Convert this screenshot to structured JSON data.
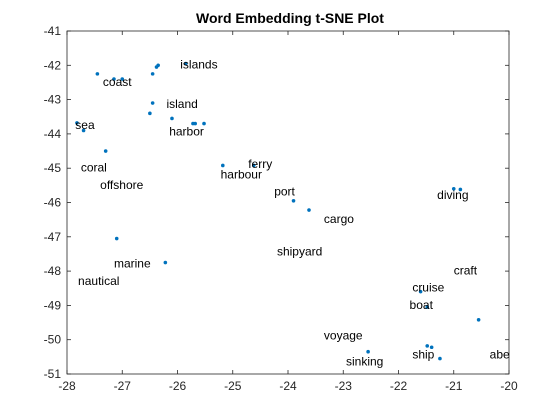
{
  "chart_data": {
    "type": "scatter",
    "title": "Word Embedding t-SNE Plot",
    "xlabel": "",
    "ylabel": "",
    "xlim": [
      -28,
      -20
    ],
    "ylim": [
      -51,
      -41
    ],
    "xticks": [
      -28,
      -27,
      -26,
      -25,
      -24,
      -23,
      -22,
      -21,
      -20
    ],
    "yticks": [
      -51,
      -50,
      -49,
      -48,
      -47,
      -46,
      -45,
      -44,
      -43,
      -42,
      -41
    ],
    "marker_color": "#0072BD",
    "grid": false,
    "legend": "none",
    "points": [
      {
        "x": -27.45,
        "y": -42.25
      },
      {
        "x": -27.15,
        "y": -42.4
      },
      {
        "x": -27.0,
        "y": -42.4
      },
      {
        "x": -26.45,
        "y": -42.25
      },
      {
        "x": -26.38,
        "y": -42.05
      },
      {
        "x": -26.35,
        "y": -42.0
      },
      {
        "x": -25.85,
        "y": -41.95
      },
      {
        "x": -26.45,
        "y": -43.1
      },
      {
        "x": -26.5,
        "y": -43.4
      },
      {
        "x": -26.1,
        "y": -43.55
      },
      {
        "x": -25.72,
        "y": -43.7
      },
      {
        "x": -25.68,
        "y": -43.7
      },
      {
        "x": -25.52,
        "y": -43.7
      },
      {
        "x": -27.82,
        "y": -43.68
      },
      {
        "x": -27.7,
        "y": -43.9
      },
      {
        "x": -27.3,
        "y": -44.5
      },
      {
        "x": -25.18,
        "y": -44.92
      },
      {
        "x": -24.62,
        "y": -44.92
      },
      {
        "x": -23.9,
        "y": -45.95
      },
      {
        "x": -23.62,
        "y": -46.22
      },
      {
        "x": -27.1,
        "y": -47.05
      },
      {
        "x": -26.22,
        "y": -47.75
      },
      {
        "x": -21.0,
        "y": -45.6
      },
      {
        "x": -20.88,
        "y": -45.62
      },
      {
        "x": -21.6,
        "y": -48.6
      },
      {
        "x": -21.48,
        "y": -49.05
      },
      {
        "x": -20.55,
        "y": -49.42
      },
      {
        "x": -21.48,
        "y": -50.18
      },
      {
        "x": -21.4,
        "y": -50.22
      },
      {
        "x": -21.25,
        "y": -50.55
      },
      {
        "x": -22.55,
        "y": -50.35
      }
    ],
    "labels": [
      {
        "text": "islands",
        "x": -25.95,
        "y": -42.1
      },
      {
        "text": "coast",
        "x": -27.35,
        "y": -42.6
      },
      {
        "text": "island",
        "x": -26.2,
        "y": -43.25
      },
      {
        "text": "sea",
        "x": -27.85,
        "y": -43.85
      },
      {
        "text": "harbor",
        "x": -26.15,
        "y": -44.05
      },
      {
        "text": "coral",
        "x": -27.75,
        "y": -45.1
      },
      {
        "text": "ferry",
        "x": -24.72,
        "y": -45.0
      },
      {
        "text": "harbour",
        "x": -25.22,
        "y": -45.3
      },
      {
        "text": "offshore",
        "x": -27.4,
        "y": -45.6
      },
      {
        "text": "port",
        "x": -24.25,
        "y": -45.8
      },
      {
        "text": "diving",
        "x": -21.3,
        "y": -45.9
      },
      {
        "text": "cargo",
        "x": -23.35,
        "y": -46.6
      },
      {
        "text": "shipyard",
        "x": -24.2,
        "y": -47.55
      },
      {
        "text": "marine",
        "x": -27.15,
        "y": -47.9
      },
      {
        "text": "craft",
        "x": -21.0,
        "y": -48.1
      },
      {
        "text": "nautical",
        "x": -27.8,
        "y": -48.4
      },
      {
        "text": "cruise",
        "x": -21.75,
        "y": -48.6
      },
      {
        "text": "boat",
        "x": -21.8,
        "y": -49.1
      },
      {
        "text": "voyage",
        "x": -23.35,
        "y": -50.0
      },
      {
        "text": "abe",
        "x": -20.35,
        "y": -50.55
      },
      {
        "text": "ship",
        "x": -21.75,
        "y": -50.55
      },
      {
        "text": "sinking",
        "x": -22.95,
        "y": -50.75
      }
    ]
  }
}
